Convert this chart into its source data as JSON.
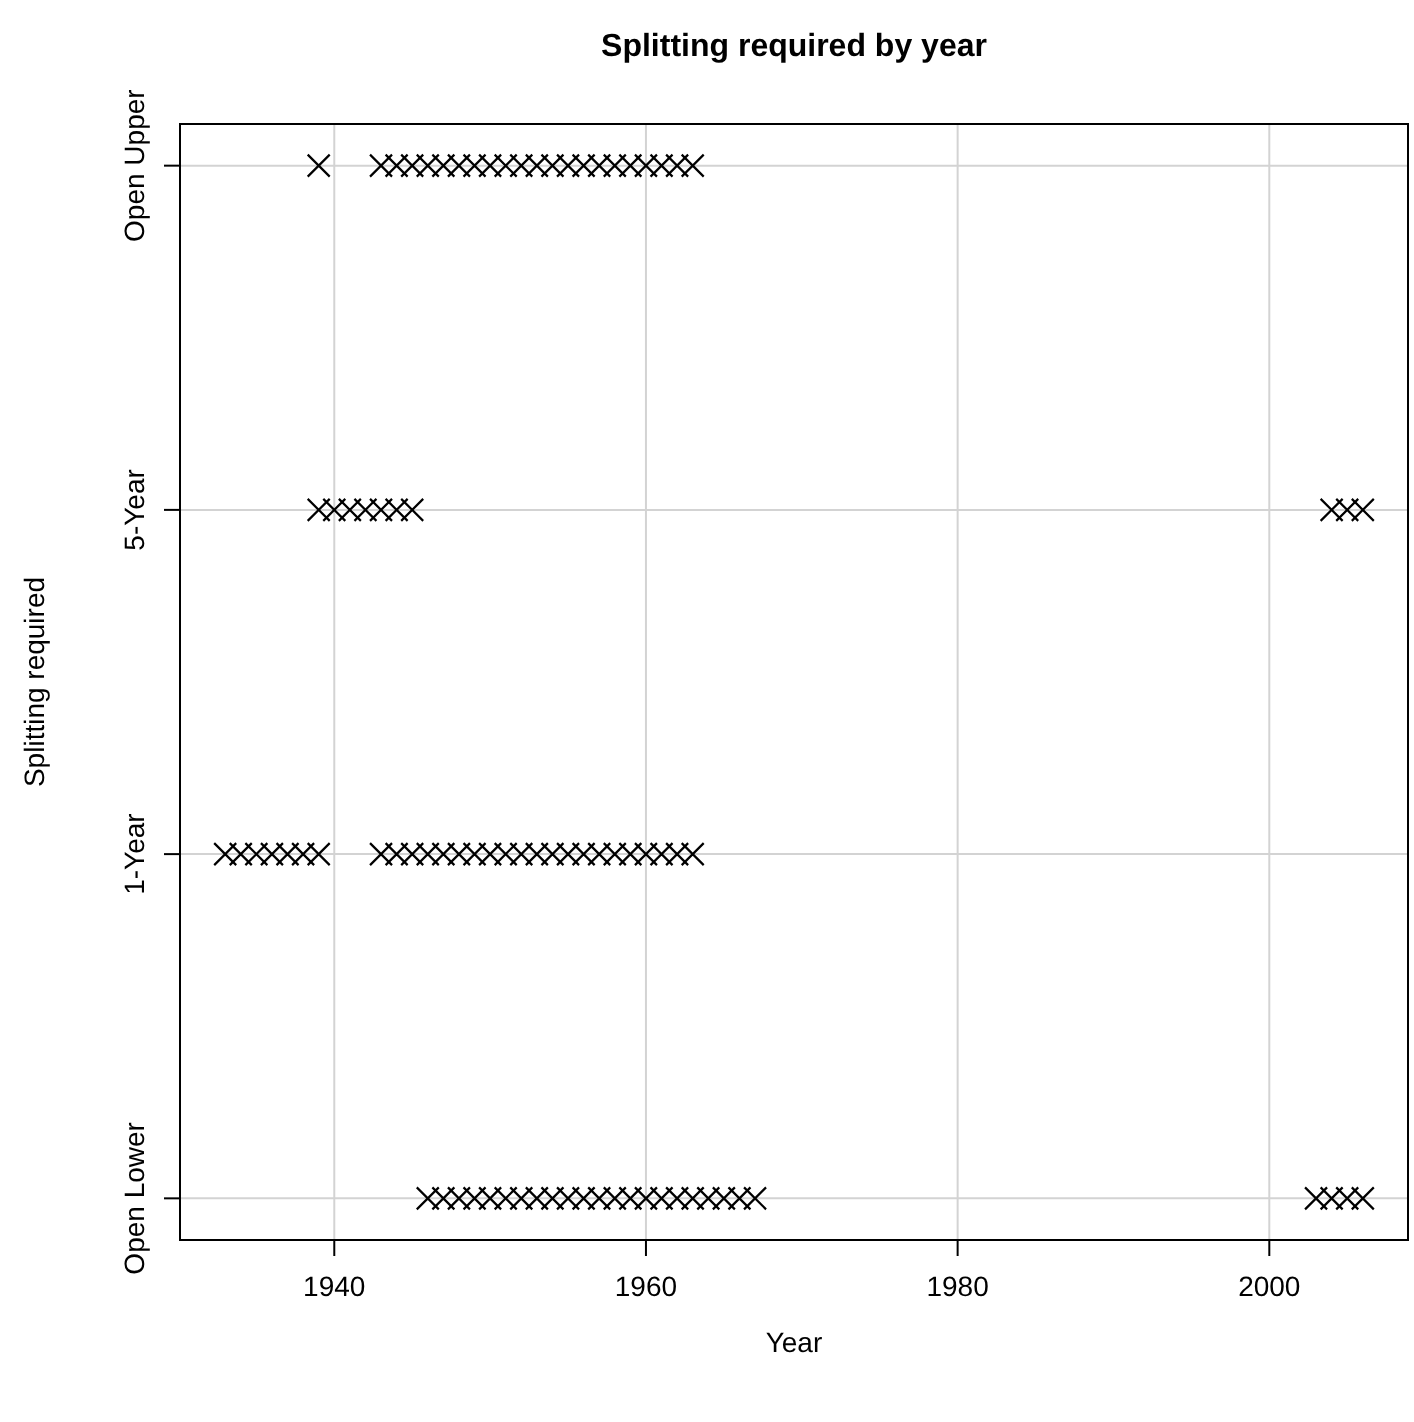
{
  "chart_data": {
    "type": "scatter",
    "orientation": "horizontal",
    "title": "Splitting required by year",
    "xlabel": "Year",
    "ylabel": "Splitting required",
    "xlim": [
      1930.1,
      2008.9
    ],
    "xticks": [
      1940,
      1960,
      1980,
      2000
    ],
    "categories": [
      "Open Upper",
      "5-Year",
      "1-Year",
      "Open Lower"
    ],
    "grid": true,
    "marker": "cross",
    "series": [
      {
        "color": "#000000",
        "x": [
          "Open Upper",
          "Open Upper",
          "Open Upper",
          "Open Upper",
          "Open Upper",
          "Open Upper",
          "Open Upper",
          "Open Upper",
          "Open Upper",
          "Open Upper",
          "Open Upper",
          "Open Upper",
          "Open Upper",
          "Open Upper",
          "Open Upper",
          "Open Upper",
          "Open Upper",
          "Open Upper",
          "Open Upper",
          "Open Upper",
          "Open Upper",
          "Open Upper"
        ],
        "values": [
          1939,
          1943,
          1944,
          1945,
          1946,
          1947,
          1948,
          1949,
          1950,
          1951,
          1952,
          1953,
          1954,
          1955,
          1956,
          1957,
          1958,
          1959,
          1960,
          1961,
          1962,
          1963
        ]
      },
      {
        "color": "#000000",
        "x": [
          "5-Year",
          "5-Year",
          "5-Year",
          "5-Year",
          "5-Year",
          "5-Year",
          "5-Year",
          "5-Year",
          "5-Year",
          "5-Year"
        ],
        "values": [
          1939,
          1940,
          1941,
          1942,
          1943,
          1944,
          1945,
          2004,
          2005,
          2006
        ]
      },
      {
        "color": "#000000",
        "x": [
          "1-Year",
          "1-Year",
          "1-Year",
          "1-Year",
          "1-Year",
          "1-Year",
          "1-Year",
          "1-Year",
          "1-Year",
          "1-Year",
          "1-Year",
          "1-Year",
          "1-Year",
          "1-Year",
          "1-Year",
          "1-Year",
          "1-Year",
          "1-Year",
          "1-Year",
          "1-Year",
          "1-Year",
          "1-Year",
          "1-Year",
          "1-Year",
          "1-Year",
          "1-Year",
          "1-Year",
          "1-Year"
        ],
        "values": [
          1933,
          1934,
          1935,
          1936,
          1937,
          1938,
          1939,
          1943,
          1944,
          1945,
          1946,
          1947,
          1948,
          1949,
          1950,
          1951,
          1952,
          1953,
          1954,
          1955,
          1956,
          1957,
          1958,
          1959,
          1960,
          1961,
          1962,
          1963
        ]
      },
      {
        "color": "#000000",
        "x": [
          "Open Lower",
          "Open Lower",
          "Open Lower",
          "Open Lower",
          "Open Lower",
          "Open Lower",
          "Open Lower",
          "Open Lower",
          "Open Lower",
          "Open Lower",
          "Open Lower",
          "Open Lower",
          "Open Lower",
          "Open Lower",
          "Open Lower",
          "Open Lower",
          "Open Lower",
          "Open Lower",
          "Open Lower",
          "Open Lower",
          "Open Lower",
          "Open Lower",
          "Open Lower",
          "Open Lower",
          "Open Lower",
          "Open Lower"
        ],
        "values": [
          1946,
          1947,
          1948,
          1949,
          1950,
          1951,
          1952,
          1953,
          1954,
          1955,
          1956,
          1957,
          1958,
          1959,
          1960,
          1961,
          1962,
          1963,
          1964,
          1965,
          1966,
          1967,
          2003,
          2004,
          2005,
          2006
        ]
      }
    ]
  }
}
